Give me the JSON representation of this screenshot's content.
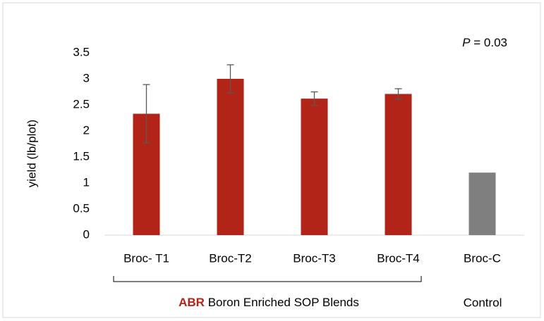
{
  "chart_data": {
    "type": "bar",
    "y_label": "yield (lb/plot)",
    "annotation": {
      "symbol": "P",
      "text": "= 0.03"
    },
    "categories": [
      "Broc- T1",
      "Broc-T2",
      "Broc-T3",
      "Broc-T4",
      "Broc-C"
    ],
    "values": [
      2.33,
      3.0,
      2.62,
      2.71,
      1.2
    ],
    "errors": [
      0.56,
      0.27,
      0.13,
      0.1,
      null
    ],
    "colors": [
      "#b22418",
      "#b22418",
      "#b22418",
      "#b22418",
      "#7f7f7f"
    ],
    "error_color": "#595959",
    "ylim": [
      0,
      3.5
    ],
    "yticks": [
      0,
      0.5,
      1,
      1.5,
      2,
      2.5,
      3,
      3.5
    ],
    "grid": false,
    "groups": [
      {
        "highlight": "ABR",
        "label": "Boron Enriched SOP Blends",
        "highlight_color": "#b22418"
      },
      {
        "label": "Control"
      }
    ]
  }
}
